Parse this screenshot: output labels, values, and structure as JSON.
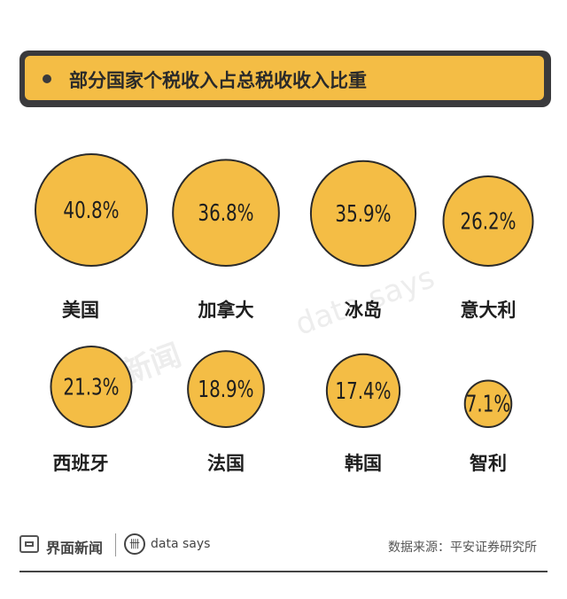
{
  "title": "部分国家个税收入占总税收收入比重",
  "chart_data": {
    "type": "bubble",
    "title": "部分国家个税收入占总税收收入比重",
    "unit": "%",
    "items": [
      {
        "country": "美国",
        "value": 40.8,
        "label": "40.8%"
      },
      {
        "country": "加拿大",
        "value": 36.8,
        "label": "36.8%"
      },
      {
        "country": "冰岛",
        "value": 35.9,
        "label": "35.9%"
      },
      {
        "country": "意大利",
        "value": 26.2,
        "label": "26.2%"
      },
      {
        "country": "西班牙",
        "value": 21.3,
        "label": "21.3%"
      },
      {
        "country": "法国",
        "value": 18.9,
        "label": "18.9%"
      },
      {
        "country": "韩国",
        "value": 17.4,
        "label": "17.4%"
      },
      {
        "country": "智利",
        "value": 7.1,
        "label": "7.1%"
      }
    ],
    "colors": {
      "fill": "#f4bd45",
      "stroke": "#2b2b2b",
      "text": "#1e1e1e"
    }
  },
  "watermark": {
    "brand": "界面新闻",
    "ds": "data says"
  },
  "footer": {
    "brand": "界面新闻",
    "ds_label": "data says",
    "source": "数据来源：平安证券研究所"
  }
}
